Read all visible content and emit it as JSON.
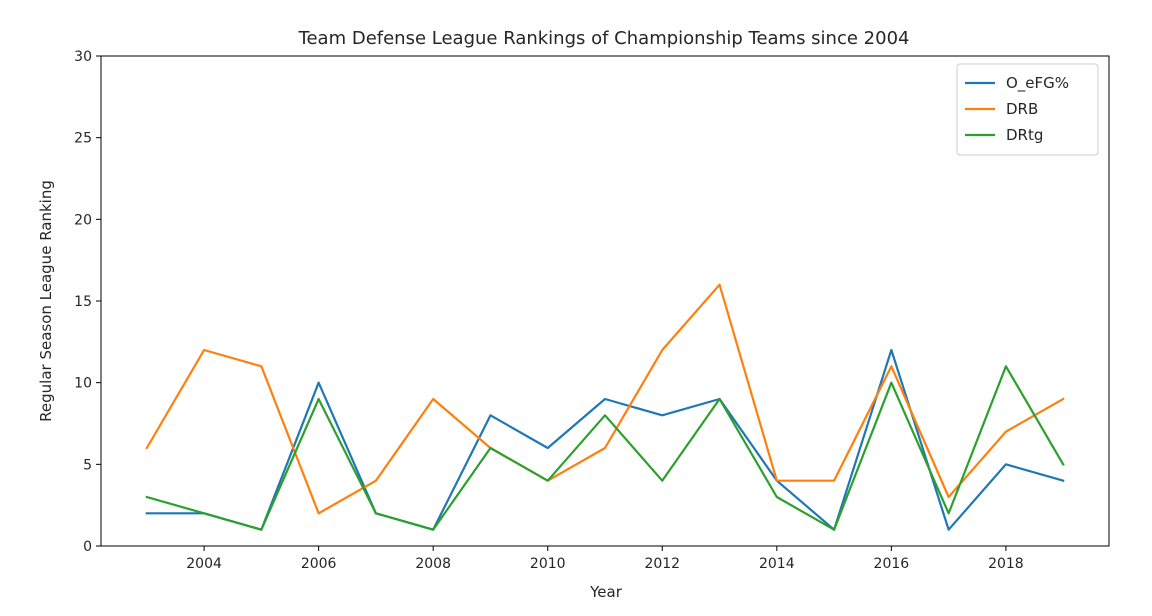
{
  "chart_data": {
    "type": "line",
    "title": "Team Defense League Rankings of Championship Teams since 2004",
    "xlabel": "Year",
    "ylabel": "Regular Season League Ranking",
    "xlim": [
      2002.2,
      2019.8
    ],
    "ylim": [
      0,
      30
    ],
    "x_ticks": [
      2004,
      2006,
      2008,
      2010,
      2012,
      2014,
      2016,
      2018
    ],
    "y_ticks": [
      0,
      5,
      10,
      15,
      20,
      25,
      30
    ],
    "grid": false,
    "legend_position": "top-right",
    "x": [
      2003,
      2004,
      2005,
      2006,
      2007,
      2008,
      2009,
      2010,
      2011,
      2012,
      2013,
      2014,
      2015,
      2016,
      2017,
      2018,
      2019
    ],
    "series": [
      {
        "name": "O_eFG%",
        "color": "#1f77b4",
        "values": [
          2,
          2,
          1,
          10,
          2,
          1,
          8,
          6,
          9,
          8,
          9,
          4,
          1,
          12,
          1,
          5,
          4
        ]
      },
      {
        "name": "DRB",
        "color": "#ff7f0e",
        "values": [
          6,
          12,
          11,
          2,
          4,
          9,
          6,
          4,
          6,
          12,
          16,
          4,
          4,
          11,
          3,
          7,
          9
        ]
      },
      {
        "name": "DRtg",
        "color": "#2ca02c",
        "values": [
          3,
          2,
          1,
          9,
          2,
          1,
          6,
          4,
          8,
          4,
          9,
          3,
          1,
          10,
          2,
          11,
          5
        ]
      }
    ]
  }
}
